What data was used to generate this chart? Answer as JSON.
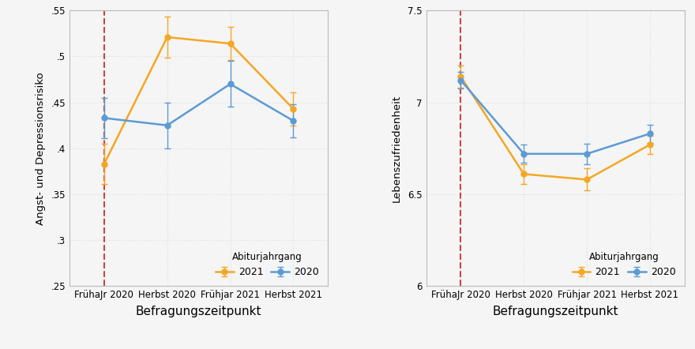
{
  "left_chart": {
    "ylabel": "Angst- und Depressionsrisiko",
    "xlabel": "Befragungszeitpunkt",
    "xtick_labels": [
      "FrühaJr 2020",
      "Herbst 2020",
      "Frühjar 2021",
      "Herbst 2021"
    ],
    "ylim": [
      0.25,
      0.55
    ],
    "yticks": [
      0.25,
      0.3,
      0.35,
      0.4,
      0.45,
      0.5,
      0.55
    ],
    "ytick_labels": [
      ".25",
      ".3",
      ".35",
      ".4",
      ".45",
      ".5",
      ".55"
    ],
    "series_2021": {
      "y": [
        0.383,
        0.521,
        0.514,
        0.443
      ],
      "yerr_lo": [
        0.022,
        0.022,
        0.018,
        0.018
      ],
      "yerr_hi": [
        0.022,
        0.022,
        0.018,
        0.018
      ],
      "color": "#F5A623",
      "label": "2021"
    },
    "series_2020": {
      "y": [
        0.433,
        0.425,
        0.47,
        0.43
      ],
      "yerr_lo": [
        0.022,
        0.025,
        0.025,
        0.018
      ],
      "yerr_hi": [
        0.022,
        0.025,
        0.025,
        0.018
      ],
      "color": "#5B9BD5",
      "label": "2020"
    },
    "vline_x": 0,
    "vline_color": "#CC4444",
    "vline_style": "--"
  },
  "right_chart": {
    "ylabel": "Lebenszufriedenheit",
    "xlabel": "Befragungszeitpunkt",
    "xtick_labels": [
      "FrühaJr 2020",
      "Herbst 2020",
      "Frühjar 2021",
      "Herbst 2021"
    ],
    "ylim": [
      6.0,
      7.5
    ],
    "yticks": [
      6.0,
      6.5,
      7.0,
      7.5
    ],
    "ytick_labels": [
      "6",
      "6.5",
      "7",
      "7.5"
    ],
    "series_2021": {
      "y": [
        7.14,
        6.61,
        6.58,
        6.77
      ],
      "yerr_lo": [
        0.06,
        0.055,
        0.06,
        0.05
      ],
      "yerr_hi": [
        0.06,
        0.055,
        0.06,
        0.05
      ],
      "color": "#F5A623",
      "label": "2021"
    },
    "series_2020": {
      "y": [
        7.12,
        6.72,
        6.72,
        6.83
      ],
      "yerr_lo": [
        0.045,
        0.05,
        0.055,
        0.05
      ],
      "yerr_hi": [
        0.045,
        0.05,
        0.055,
        0.05
      ],
      "color": "#5B9BD5",
      "label": "2020"
    },
    "vline_x": 0,
    "vline_color": "#CC4444",
    "vline_style": "--"
  },
  "legend_title": "Abiturjahrgang",
  "bg_color": "#F5F5F5",
  "plot_bg_color": "#F5F5F5",
  "grid_color": "#DDDDDD",
  "grid_style": "dotted",
  "marker": "o",
  "markersize": 5,
  "linewidth": 1.8,
  "capsize": 3,
  "spine_color": "#BBBBBB"
}
